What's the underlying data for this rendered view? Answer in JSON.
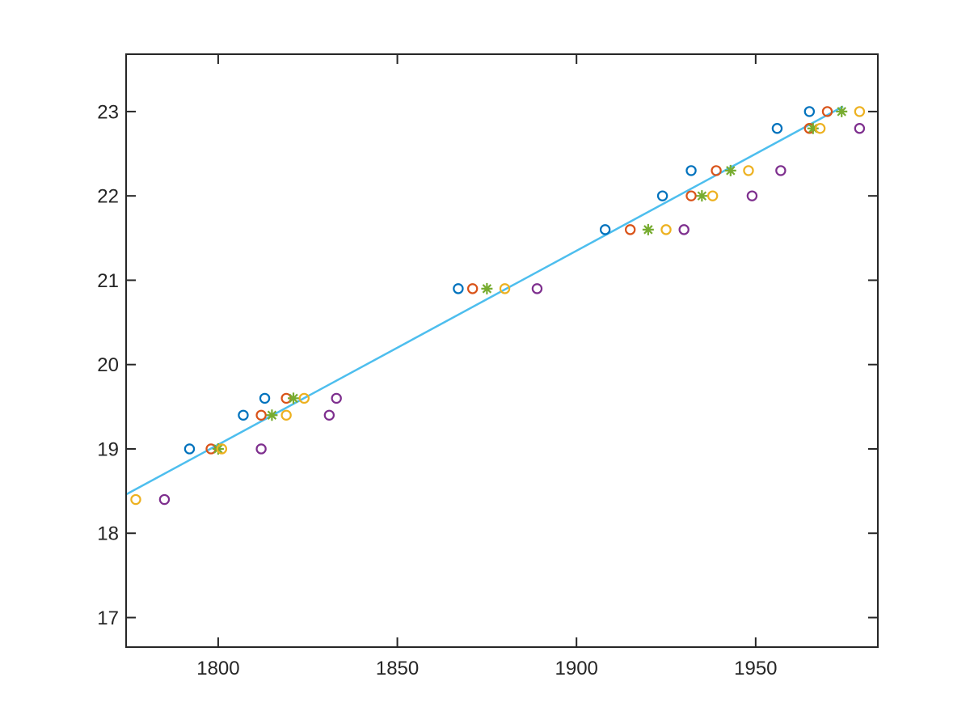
{
  "figure": {
    "background": "#ffffff",
    "axis_color": "#262626",
    "tick_label_color": "#262626"
  },
  "chart_data": {
    "type": "scatter",
    "title": "",
    "xlabel": "",
    "ylabel": "",
    "grid": false,
    "legend": "none",
    "xlim": [
      1774.3,
      1984.1
    ],
    "ylim": [
      16.65,
      23.68
    ],
    "xticks": [
      1800,
      1850,
      1900,
      1950
    ],
    "yticks": [
      17,
      18,
      19,
      20,
      21,
      22,
      23
    ],
    "series": [
      {
        "name": "series-1-blue-circles",
        "marker": "circle",
        "color": "#0072BD",
        "points": [
          [
            1792,
            19.0
          ],
          [
            1807,
            19.4
          ],
          [
            1813,
            19.6
          ],
          [
            1867,
            20.9
          ],
          [
            1908,
            21.6
          ],
          [
            1924,
            22.0
          ],
          [
            1932,
            22.3
          ],
          [
            1956,
            22.8
          ],
          [
            1965,
            23.0
          ]
        ]
      },
      {
        "name": "series-2-orange-circles",
        "marker": "circle",
        "color": "#D95319",
        "points": [
          [
            1798,
            19.0
          ],
          [
            1812,
            19.4
          ],
          [
            1819,
            19.6
          ],
          [
            1871,
            20.9
          ],
          [
            1915,
            21.6
          ],
          [
            1932,
            22.0
          ],
          [
            1939,
            22.3
          ],
          [
            1965,
            22.8
          ],
          [
            1970,
            23.0
          ]
        ]
      },
      {
        "name": "series-3-green-asterisks",
        "marker": "asterisk",
        "color": "#77AC30",
        "points": [
          [
            1800,
            19.0
          ],
          [
            1815,
            19.4
          ],
          [
            1821,
            19.6
          ],
          [
            1875,
            20.9
          ],
          [
            1920,
            21.6
          ],
          [
            1935,
            22.0
          ],
          [
            1943,
            22.3
          ],
          [
            1966,
            22.8
          ],
          [
            1974,
            23.0
          ]
        ]
      },
      {
        "name": "series-4-yellow-circles",
        "marker": "circle",
        "color": "#EDB120",
        "points": [
          [
            1777,
            18.4
          ],
          [
            1801,
            19.0
          ],
          [
            1819,
            19.4
          ],
          [
            1824,
            19.6
          ],
          [
            1880,
            20.9
          ],
          [
            1925,
            21.6
          ],
          [
            1938,
            22.0
          ],
          [
            1948,
            22.3
          ],
          [
            1968,
            22.8
          ],
          [
            1979,
            23.0
          ]
        ]
      },
      {
        "name": "series-5-purple-circles",
        "marker": "circle",
        "color": "#7E2F8E",
        "points": [
          [
            1785,
            18.4
          ],
          [
            1812,
            19.0
          ],
          [
            1831,
            19.4
          ],
          [
            1833,
            19.6
          ],
          [
            1889,
            20.9
          ],
          [
            1930,
            21.6
          ],
          [
            1949,
            22.0
          ],
          [
            1957,
            22.3
          ],
          [
            1979,
            22.8
          ]
        ]
      }
    ],
    "fit_line": {
      "name": "trend-line",
      "color": "#4DBEEE",
      "x": [
        1774.3,
        1974.4
      ],
      "y": [
        18.46,
        23.06
      ]
    }
  }
}
